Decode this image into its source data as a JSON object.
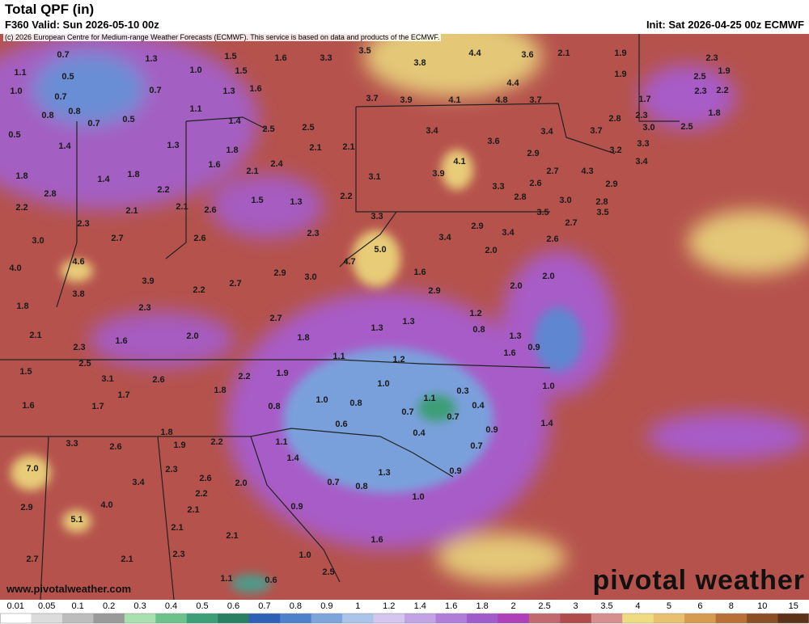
{
  "header": {
    "title": "Total QPF (in)",
    "valid": "F360 Valid: Sun 2026-05-10 00z",
    "init": "Init: Sat 2026-04-25 00z ECMWF",
    "credit": "(c) 2026 European Centre for Medium-range Weather Forecasts (ECMWF). This service is based on data and products of the ECMWF."
  },
  "map": {
    "labels": [
      "0.7",
      "1.3",
      "1.5",
      "1.6",
      "3.3",
      "3.5",
      "3.8",
      "4.4",
      "3.6",
      "2.1",
      "1.9",
      "2.3",
      "1.1",
      "0.5",
      "1.0",
      "1.5",
      "1.9",
      "2.5",
      "1.9",
      "1.0",
      "0.7",
      "0.7",
      "1.3",
      "1.6",
      "4.4",
      "2.3",
      "2.2",
      "0.8",
      "0.8",
      "0.7",
      "0.5",
      "1.1",
      "3.7",
      "3.9",
      "4.1",
      "4.8",
      "3.7",
      "1.7",
      "1.4",
      "2.5",
      "2.5",
      "2.8",
      "2.3",
      "3.0",
      "2.5",
      "1.8",
      "0.5",
      "1.4",
      "1.3",
      "1.8",
      "2.1",
      "2.1",
      "3.4",
      "3.6",
      "3.4",
      "3.7",
      "3.2",
      "3.3",
      "1.6",
      "2.4",
      "2.1",
      "2.9",
      "4.1",
      "3.4",
      "1.8",
      "1.4",
      "1.8",
      "3.1",
      "3.9",
      "2.7",
      "4.3",
      "2.8",
      "2.2",
      "3.3",
      "2.6",
      "2.9",
      "2.2",
      "2.1",
      "2.1",
      "2.6",
      "1.5",
      "1.3",
      "2.2",
      "2.8",
      "3.0",
      "2.8",
      "2.3",
      "3.3",
      "3.5",
      "2.7",
      "3.5",
      "3.0",
      "2.7",
      "2.6",
      "2.3",
      "2.9",
      "3.4",
      "3.4",
      "2.6",
      "4.0",
      "4.6",
      "4.7",
      "5.0",
      "2.0",
      "2.9",
      "3.0",
      "1.6",
      "2.0",
      "3.8",
      "3.9",
      "2.2",
      "2.7",
      "2.9",
      "2.0",
      "1.8",
      "2.3",
      "1.2",
      "2.7",
      "0.8",
      "2.1",
      "1.6",
      "2.0",
      "1.8",
      "1.3",
      "1.3",
      "1.3",
      "2.3",
      "1.6",
      "0.9",
      "2.5",
      "1.1",
      "1.2",
      "1.5",
      "3.1",
      "2.6",
      "2.2",
      "1.9",
      "1.0",
      "1.7",
      "1.8",
      "1.1",
      "0.3",
      "0.4",
      "1.0",
      "1.6",
      "1.7",
      "0.8",
      "1.0",
      "0.8",
      "0.7",
      "0.7",
      "0.6",
      "0.9",
      "1.4",
      "0.4",
      "1.8",
      "3.3",
      "2.6",
      "1.9",
      "2.2",
      "1.1",
      "0.7",
      "7.0",
      "2.3",
      "1.4",
      "1.3",
      "0.9",
      "3.4",
      "2.6",
      "2.0",
      "0.7",
      "0.8",
      "2.2",
      "1.0",
      "2.9",
      "4.0",
      "2.1",
      "0.9",
      "5.1",
      "2.1",
      "2.1",
      "1.6",
      "2.7",
      "2.1",
      "2.3",
      "1.0",
      "1.1",
      "0.6",
      "2.5"
    ]
  },
  "colorbar": {
    "labels": [
      "0.01",
      "0.05",
      "0.1",
      "0.2",
      "0.3",
      "0.4",
      "0.5",
      "0.6",
      "0.7",
      "0.8",
      "0.9",
      "1",
      "1.2",
      "1.4",
      "1.6",
      "1.8",
      "2",
      "2.5",
      "3",
      "3.5",
      "4",
      "5",
      "6",
      "8",
      "10",
      "15"
    ],
    "colors": [
      "#ffffff",
      "#dcdcdc",
      "#bdbdbd",
      "#9a9a9a",
      "#a8e0b0",
      "#6cc28a",
      "#3e9e78",
      "#2a7e62",
      "#2f60b8",
      "#4f80cc",
      "#7ea4dc",
      "#aac4ea",
      "#d4c6ee",
      "#c2a4e6",
      "#b07ed8",
      "#a05cc8",
      "#b040b8",
      "#c06a70",
      "#b04c4c",
      "#d68e8e",
      "#f0dc80",
      "#e8c070",
      "#d69a50",
      "#b87038",
      "#8c4e24",
      "#5c3218"
    ]
  },
  "footer": {
    "website": "www.pivotalweather.com",
    "logo": "pivotal weather"
  }
}
